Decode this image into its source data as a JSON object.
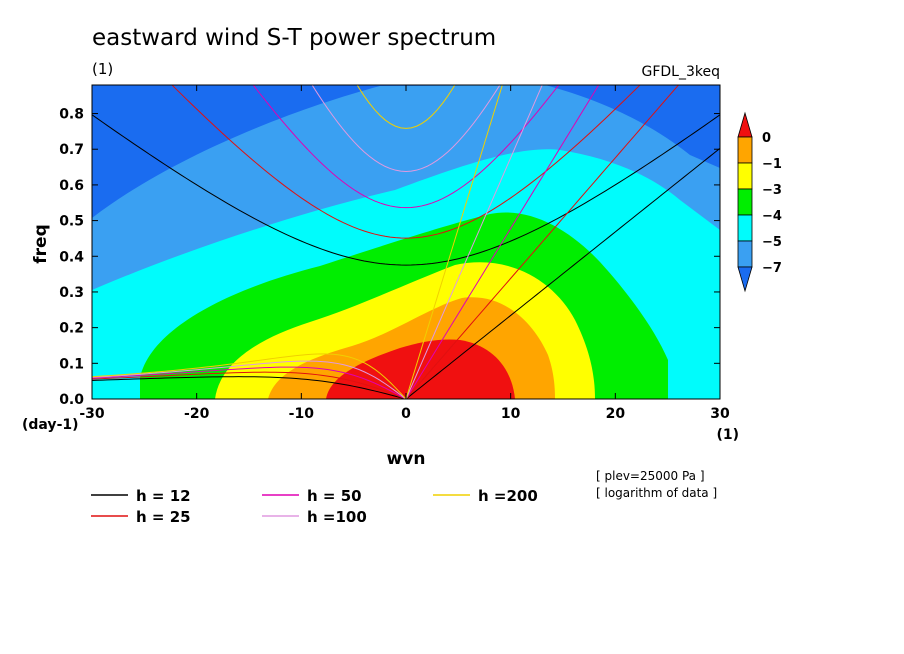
{
  "chart_data": {
    "type": "heatmap",
    "title": "eastward wind S-T power spectrum",
    "subtitle_left": "(1)",
    "subtitle_right": "GFDL_3keq",
    "xlabel": "wvn",
    "ylabel": "freq",
    "x_unit_label": "(1)",
    "y_unit_label": "(day-1)",
    "xlim": [
      -30,
      30
    ],
    "ylim": [
      0,
      0.88
    ],
    "x_ticks": [
      -30,
      -20,
      -10,
      0,
      10,
      20,
      30
    ],
    "x_tick_labels": [
      "-30",
      "-20",
      "-10",
      "0",
      "10",
      "20",
      "30"
    ],
    "y_ticks": [
      0,
      0.1,
      0.2,
      0.3,
      0.4,
      0.5,
      0.6,
      0.7,
      0.8
    ],
    "y_tick_labels": [
      "0.0",
      "0.1",
      "0.2",
      "0.3",
      "0.4",
      "0.5",
      "0.6",
      "0.7",
      "0.8"
    ],
    "fill_levels": [
      {
        "range": "< -7",
        "color": "#1a6cf0"
      },
      {
        "range": "-7 to -5",
        "color": "#3aa0f2"
      },
      {
        "range": "-5 to -4",
        "color": "#00fcfc"
      },
      {
        "range": "-4 to -3",
        "color": "#00ee00"
      },
      {
        "range": "-3 to -1",
        "color": "#ffff00"
      },
      {
        "range": "-1 to 0",
        "color": "#ffa500"
      },
      {
        "range": "> 0",
        "color": "#f01010"
      }
    ],
    "colorbar_ticks": [
      "0",
      "−1",
      "−3",
      "−4",
      "−5",
      "−7"
    ],
    "dispersion_curves": [
      {
        "label": "h = 12",
        "h": 12,
        "color": "#000000"
      },
      {
        "label": "h = 25",
        "h": 25,
        "color": "#e01010"
      },
      {
        "label": "h = 50",
        "h": 50,
        "color": "#e000b4"
      },
      {
        "label": "h =100",
        "h": 100,
        "color": "#e09ae0"
      },
      {
        "label": "h =200",
        "h": 200,
        "color": "#f0d000"
      }
    ],
    "notes": [
      "[ plev=25000 Pa ]",
      "[ logarithm of data ]"
    ]
  }
}
